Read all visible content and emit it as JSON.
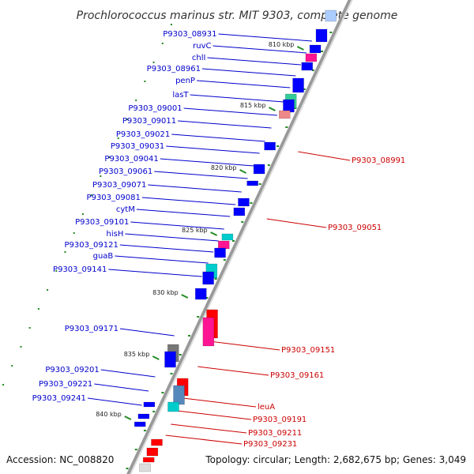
{
  "title": "Prochlorococcus marinus str. MIT 9303, complete genome",
  "accession": "Accession: NC_008820",
  "summary": "Topology: circular; Length: 2,682,675 bp; Genes: 3,049",
  "colors": {
    "forward_gene": "#0000ff",
    "reverse_gene": "#ff0000",
    "rna_gene": "#ff1493",
    "trna_gene": "#33cc99",
    "teal_gene": "#00cccc",
    "grey_gene": "#777777",
    "backbone": "#999999",
    "left_label": "#0000cc",
    "right_label": "#cc0000",
    "tick": "#228b22"
  },
  "scale_ticks": [
    "810 kbp",
    "815 kbp",
    "820 kbp",
    "825 kbp",
    "830 kbp",
    "835 kbp",
    "840 kbp"
  ],
  "left_labels": [
    "P9303_08931",
    "ruvC",
    "chlI",
    "P9303_08961",
    "penP",
    "lasT",
    "P9303_09001",
    "P9303_09011",
    "P9303_09021",
    "P9303_09031",
    "P9303_09041",
    "P9303_09061",
    "P9303_09071",
    "P9303_09081",
    "cytM",
    "P9303_09101",
    "hisH",
    "P9303_09121",
    "guaB",
    "P9303_09141",
    "P9303_09171",
    "P9303_09201",
    "P9303_09221",
    "P9303_09241"
  ],
  "right_labels": [
    "P9303_08991",
    "P9303_09051",
    "P9303_09151",
    "P9303_09161",
    "leuA",
    "P9303_09191",
    "P9303_09211",
    "P9303_09231"
  ]
}
